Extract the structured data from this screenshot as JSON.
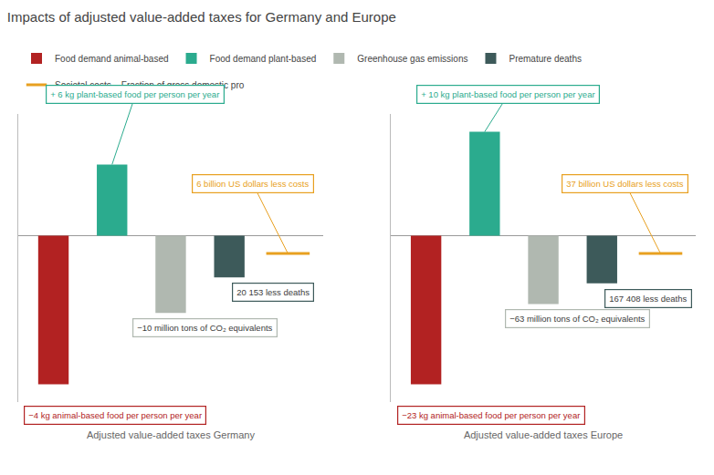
{
  "chart_data": [
    {
      "type": "bar",
      "title": "Impacts of adjusted value-added taxes for Germany and Europe",
      "xlabel": "Adjusted value-added taxes Germany",
      "categories": [
        null,
        null,
        null,
        null,
        null
      ],
      "series": [
        {
          "name": "Food demand animal-based",
          "color": "#b22222",
          "values": [
            -1.0,
            null,
            null,
            null,
            null
          ],
          "annotation": "−4 kg animal-based food per person per year"
        },
        {
          "name": "Food demand plant-based",
          "color": "#2bab8e",
          "values": [
            null,
            0.48,
            null,
            null,
            null
          ],
          "annotation": "+ 6 kg plant-based food per person per year"
        },
        {
          "name": "Greenhouse gas emissions",
          "color": "#b0b8b0",
          "values": [
            null,
            null,
            -0.52,
            null,
            null
          ],
          "annotation": "−10 million tons of CO₂ equivalents"
        },
        {
          "name": "Premature deaths",
          "color": "#3d5a5a",
          "values": [
            null,
            null,
            null,
            -0.28,
            null
          ],
          "annotation": "20 153 less deaths"
        },
        {
          "name": "Societal costs – Fraction of gross domestic pro",
          "color": "#e8a020",
          "type": "line",
          "marker": "hline",
          "values": [
            null,
            null,
            null,
            null,
            -0.12
          ],
          "annotation": "6 billion US dollars less costs"
        }
      ],
      "ylim": [
        -1.12,
        0.82
      ],
      "yticks": [],
      "tick_labels": false,
      "grid": false,
      "legend": "top"
    },
    {
      "type": "bar",
      "xlabel": "Adjusted value-added taxes Europe",
      "categories": [
        null,
        null,
        null,
        null,
        null
      ],
      "series": [
        {
          "name": "Food demand animal-based",
          "color": "#b22222",
          "values": [
            -1.0,
            null,
            null,
            null,
            null
          ],
          "annotation": "−23 kg animal-based food per person per year"
        },
        {
          "name": "Food demand plant-based",
          "color": "#2bab8e",
          "values": [
            null,
            0.7,
            null,
            null,
            null
          ],
          "annotation": "+ 10 kg plant-based food per person per year"
        },
        {
          "name": "Greenhouse gas emissions",
          "color": "#b0b8b0",
          "values": [
            null,
            null,
            -0.46,
            null,
            null
          ],
          "annotation": "−63 million tons of CO₂ equivalents"
        },
        {
          "name": "Premature deaths",
          "color": "#3d5a5a",
          "values": [
            null,
            null,
            null,
            -0.32,
            null
          ],
          "annotation": "167 408 less deaths"
        },
        {
          "name": "Societal costs – Fraction of gross domestic pro",
          "color": "#e8a020",
          "type": "line",
          "marker": "hline",
          "values": [
            null,
            null,
            null,
            null,
            -0.12
          ],
          "annotation": "37 billion US dollars less costs"
        }
      ],
      "ylim": [
        -1.12,
        0.82
      ],
      "yticks": [],
      "tick_labels": false,
      "grid": false,
      "legend": "top"
    }
  ]
}
